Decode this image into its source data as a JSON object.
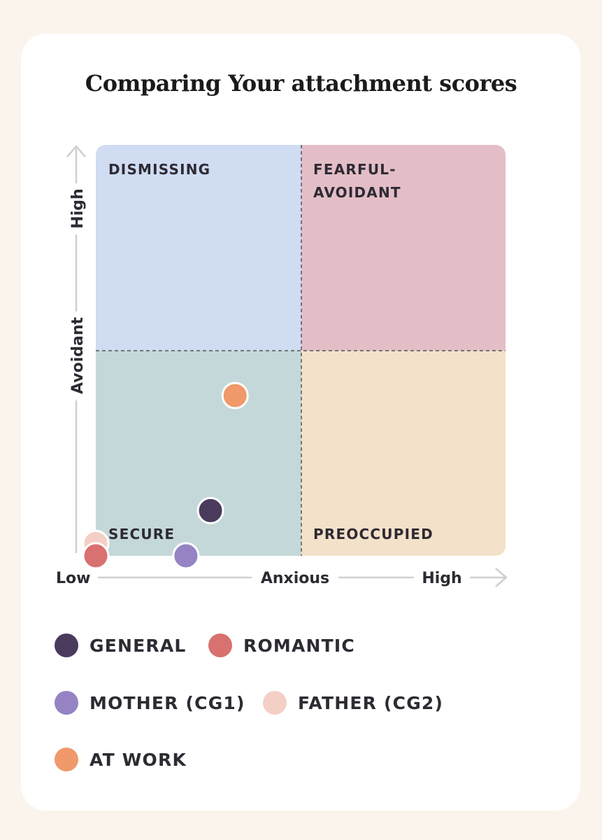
{
  "chart_data": {
    "type": "scatter",
    "title": "Comparing Your attachment scores",
    "xlabel": "Anxious",
    "ylabel": "Avoidant",
    "x_low_label": "Low",
    "x_high_label": "High",
    "y_high_label": "High",
    "xlim": [
      0,
      1
    ],
    "ylim": [
      0,
      1
    ],
    "quadrants": [
      {
        "label": "DISMISSING",
        "color": "#cfdcf2"
      },
      {
        "label": "FEARFUL-AVOIDANT",
        "label_lines": [
          "FEARFUL-",
          "AVOIDANT"
        ],
        "color": "#e3bec7"
      },
      {
        "label": "SECURE",
        "color": "#c4d8da"
      },
      {
        "label": "PREOCCUPIED",
        "color": "#f3e1c9"
      }
    ],
    "series": [
      {
        "name": "GENERAL",
        "color": "#4a3a5c",
        "x": 0.28,
        "y": 0.11
      },
      {
        "name": "ROMANTIC",
        "color": "#d8716f",
        "x": 0.0,
        "y": 0.0
      },
      {
        "name": "MOTHER (CG1)",
        "color": "#9583c3",
        "x": 0.22,
        "y": 0.0
      },
      {
        "name": "FATHER (CG2)",
        "color": "#f4cfc5",
        "x": 0.0,
        "y": 0.03
      },
      {
        "name": "AT WORK",
        "color": "#f0996a",
        "x": 0.34,
        "y": 0.39
      }
    ]
  }
}
